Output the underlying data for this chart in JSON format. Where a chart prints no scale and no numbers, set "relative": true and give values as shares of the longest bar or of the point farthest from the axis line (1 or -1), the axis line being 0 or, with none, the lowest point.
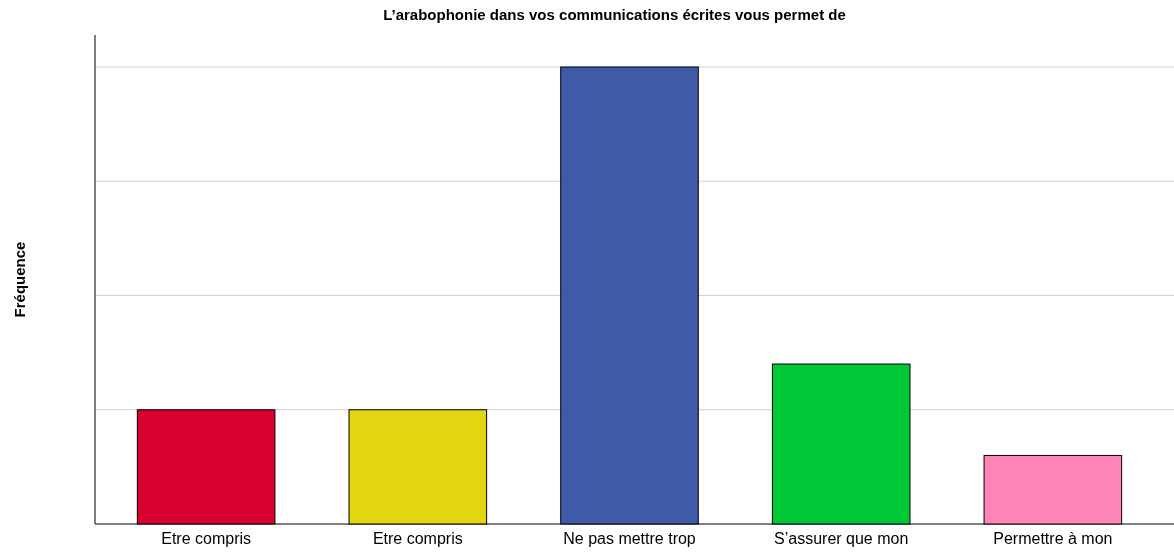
{
  "chart_data": {
    "type": "bar",
    "title": "L’arabophonie dans vos communications écrites vous permet de",
    "ylabel": "Fréquence",
    "categories": [
      "Etre compris",
      "Etre compris",
      "Ne pas mettre trop",
      "S’assurer que mon",
      "Permettre à mon"
    ],
    "values": [
      0.25,
      0.25,
      1,
      0.35,
      0.15
    ],
    "colors": [
      "#d7002f",
      "#e2d612",
      "#3f5ba8",
      "#00c837",
      "#ff85b6"
    ],
    "relative": true,
    "grid": "y"
  }
}
